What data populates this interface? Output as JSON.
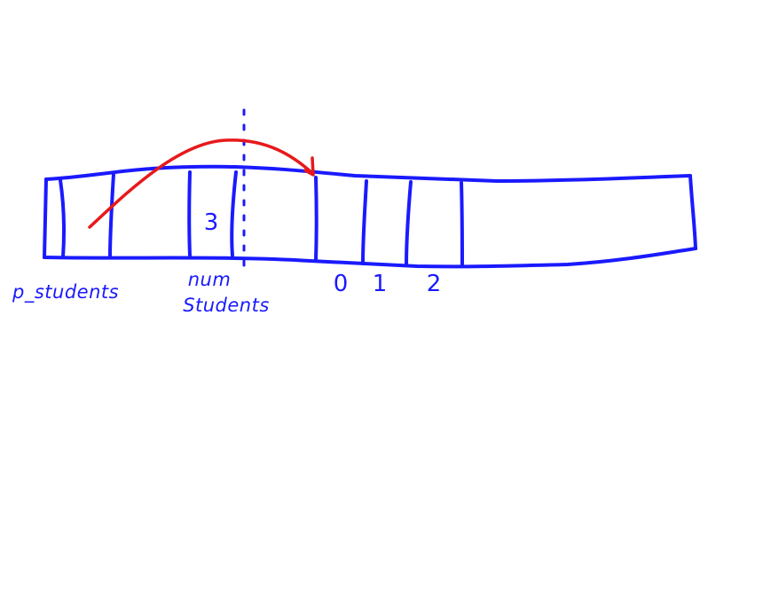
{
  "colors": {
    "ink": "#1a1aff",
    "arrow": "#e8191a",
    "background": "#ffffff"
  },
  "diagram": {
    "cell_value": "3",
    "labels": {
      "p_students": "p_students",
      "num": "num",
      "students": "Students"
    },
    "indices": [
      "0",
      "1",
      "2"
    ]
  }
}
